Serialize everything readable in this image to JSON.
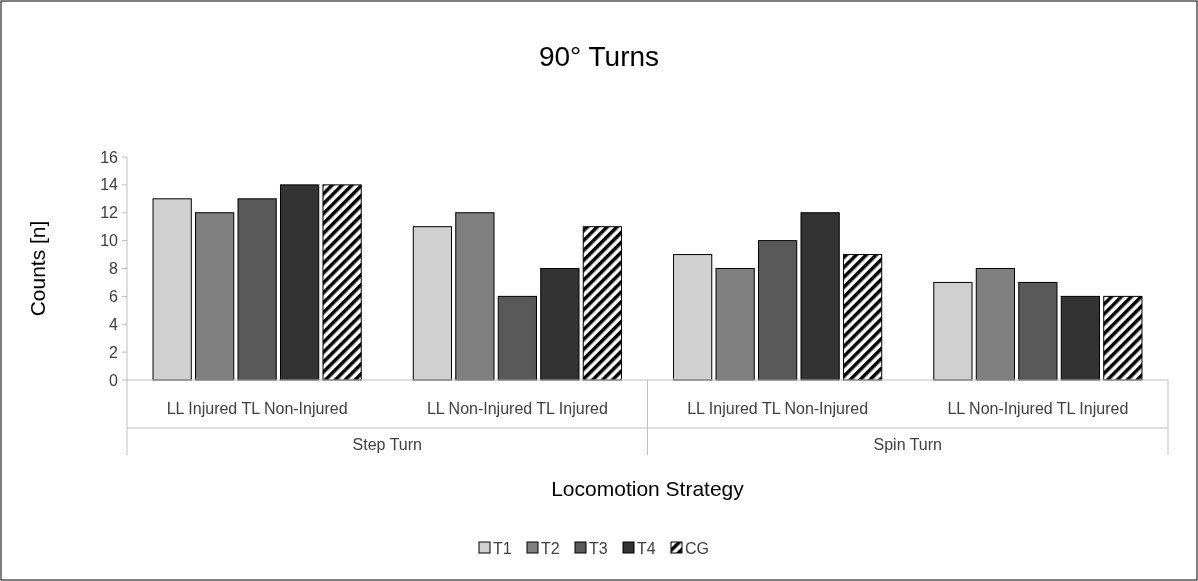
{
  "chart_data": {
    "type": "bar",
    "title": "90° Turns",
    "xlabel": "Locomotion Strategy",
    "ylabel": "Counts [n]",
    "categories": [
      "LL Injured TL Non-Injured",
      "LL Non-Injured TL Injured",
      "LL Injured TL Non-Injured",
      "LL Non-Injured TL Injured"
    ],
    "annotations": [
      "Step Turn",
      "Spin Turn"
    ],
    "series": [
      {
        "name": "T1",
        "color": "#d0d0d0",
        "values": [
          13,
          11,
          9,
          7
        ]
      },
      {
        "name": "T2",
        "color": "#808080",
        "values": [
          12,
          12,
          8,
          8
        ]
      },
      {
        "name": "T3",
        "color": "#595959",
        "values": [
          13,
          6,
          10,
          7
        ]
      },
      {
        "name": "T4",
        "color": "#333333",
        "values": [
          14,
          8,
          12,
          6
        ]
      },
      {
        "name": "CG",
        "color": "#000000",
        "values": [
          14,
          11,
          9,
          6
        ]
      }
    ],
    "ylim": [
      0,
      16
    ],
    "yticks": [
      0,
      2,
      4,
      6,
      8,
      10,
      12,
      14,
      16
    ],
    "grid": false,
    "legend": "bottom"
  }
}
